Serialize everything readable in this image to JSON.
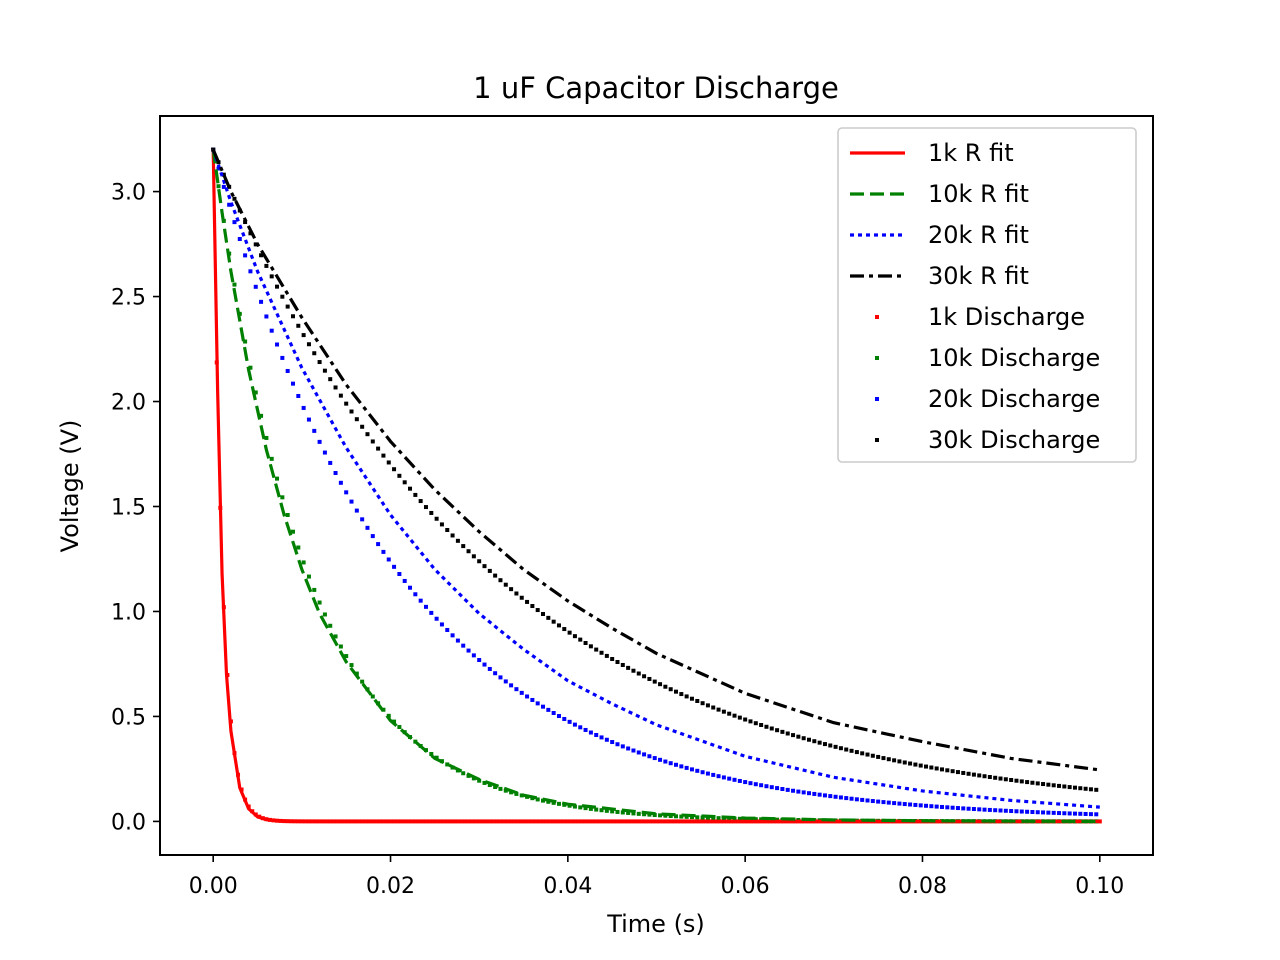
{
  "chart_data": {
    "type": "line",
    "title": "1 uF Capacitor Discharge",
    "xlabel": "Time (s)",
    "ylabel": "Voltage (V)",
    "xlim": [
      -0.006,
      0.106
    ],
    "ylim": [
      -0.16,
      3.36
    ],
    "xticks": [
      {
        "value": 0.0,
        "label": "0.00"
      },
      {
        "value": 0.02,
        "label": "0.02"
      },
      {
        "value": 0.04,
        "label": "0.04"
      },
      {
        "value": 0.06,
        "label": "0.06"
      },
      {
        "value": 0.08,
        "label": "0.08"
      },
      {
        "value": 0.1,
        "label": "0.10"
      }
    ],
    "yticks": [
      {
        "value": 0.0,
        "label": "0.0"
      },
      {
        "value": 0.5,
        "label": "0.5"
      },
      {
        "value": 1.0,
        "label": "1.0"
      },
      {
        "value": 1.5,
        "label": "1.5"
      },
      {
        "value": 2.0,
        "label": "2.0"
      },
      {
        "value": 2.5,
        "label": "2.5"
      },
      {
        "value": 3.0,
        "label": "3.0"
      }
    ],
    "grid": false,
    "legend_position": "top-right",
    "fits": [
      {
        "name": "1k R fit",
        "color": "#ff0000",
        "style": "solid",
        "x": [
          0.0,
          0.0005,
          0.001,
          0.0015,
          0.002,
          0.003,
          0.004,
          0.005,
          0.006,
          0.008,
          0.01,
          0.02,
          0.04,
          0.06,
          0.08,
          0.1
        ],
        "y": [
          3.2,
          2.05,
          1.18,
          0.7,
          0.43,
          0.16,
          0.06,
          0.022,
          0.008,
          0.001,
          0.0,
          0.0,
          0.0,
          0.0,
          0.0,
          0.0
        ]
      },
      {
        "name": "10k R fit",
        "color": "#008000",
        "style": "dashed",
        "x": [
          0.0,
          0.001,
          0.002,
          0.004,
          0.006,
          0.008,
          0.01,
          0.012,
          0.015,
          0.02,
          0.025,
          0.03,
          0.035,
          0.04,
          0.05,
          0.06,
          0.07,
          0.08,
          0.09,
          0.1
        ],
        "y": [
          3.2,
          2.9,
          2.62,
          2.15,
          1.77,
          1.46,
          1.2,
          0.99,
          0.76,
          0.48,
          0.3,
          0.2,
          0.125,
          0.082,
          0.036,
          0.016,
          0.007,
          0.003,
          0.001,
          0.0
        ]
      },
      {
        "name": "20k R fit",
        "color": "#0000ff",
        "style": "dotted",
        "x": [
          0.0,
          0.002,
          0.005,
          0.01,
          0.015,
          0.02,
          0.025,
          0.03,
          0.035,
          0.04,
          0.045,
          0.05,
          0.06,
          0.07,
          0.08,
          0.09,
          0.1
        ],
        "y": [
          3.2,
          2.95,
          2.62,
          2.16,
          1.78,
          1.46,
          1.2,
          0.99,
          0.82,
          0.67,
          0.56,
          0.46,
          0.31,
          0.21,
          0.145,
          0.1,
          0.068
        ]
      },
      {
        "name": "30k R fit",
        "color": "#000000",
        "style": "dashdot",
        "x": [
          0.0,
          0.002,
          0.005,
          0.01,
          0.015,
          0.02,
          0.025,
          0.03,
          0.035,
          0.04,
          0.045,
          0.05,
          0.06,
          0.07,
          0.08,
          0.09,
          0.1
        ],
        "y": [
          3.2,
          3.0,
          2.75,
          2.4,
          2.08,
          1.81,
          1.58,
          1.38,
          1.2,
          1.05,
          0.92,
          0.8,
          0.61,
          0.47,
          0.38,
          0.3,
          0.245
        ]
      }
    ],
    "discharges": [
      {
        "name": "1k Discharge",
        "color": "#ff0000",
        "tau": 0.00105,
        "v0": 3.2,
        "offset": 0.0,
        "t_end": 0.1,
        "step": 0.0004
      },
      {
        "name": "10k Discharge",
        "color": "#008000",
        "tau": 0.0107,
        "v0": 3.2,
        "offset": 0.0,
        "t_end": 0.1,
        "step": 0.0006
      },
      {
        "name": "20k Discharge",
        "color": "#0000ff",
        "tau": 0.021,
        "v0": 3.2,
        "offset": 0.006,
        "t_end": 0.1,
        "step": 0.0006
      },
      {
        "name": "30k Discharge",
        "color": "#000000",
        "tau": 0.0315,
        "v0": 3.2,
        "offset": 0.015,
        "t_end": 0.1,
        "step": 0.0006
      }
    ]
  }
}
